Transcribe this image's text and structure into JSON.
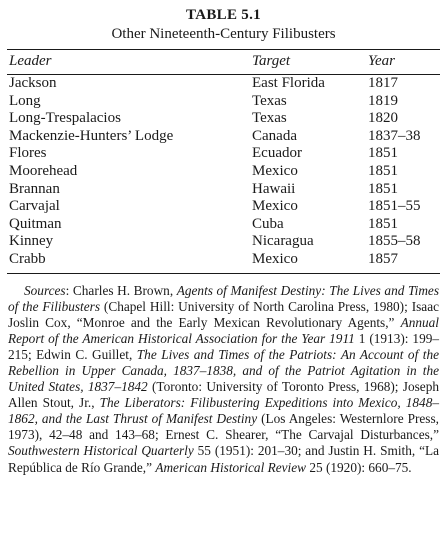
{
  "table": {
    "number": "TABLE 5.1",
    "caption": "Other Nineteenth-Century Filibusters",
    "headers": {
      "leader": "Leader",
      "target": "Target",
      "year": "Year"
    },
    "rows": [
      {
        "leader": "Jackson",
        "target": "East Florida",
        "year": "1817"
      },
      {
        "leader": "Long",
        "target": "Texas",
        "year": "1819"
      },
      {
        "leader": "Long-Trespalacios",
        "target": "Texas",
        "year": "1820"
      },
      {
        "leader": "Mackenzie-Hunters’ Lodge",
        "target": "Canada",
        "year": "1837–38"
      },
      {
        "leader": "Flores",
        "target": "Ecuador",
        "year": "1851"
      },
      {
        "leader": "Moorehead",
        "target": "Mexico",
        "year": "1851"
      },
      {
        "leader": "Brannan",
        "target": "Hawaii",
        "year": "1851"
      },
      {
        "leader": "Carvajal",
        "target": "Mexico",
        "year": "1851–55"
      },
      {
        "leader": "Quitman",
        "target": "Cuba",
        "year": "1851"
      },
      {
        "leader": "Kinney",
        "target": "Nicaragua",
        "year": "1855–58"
      },
      {
        "leader": "Crabb",
        "target": "Mexico",
        "year": "1857"
      }
    ]
  },
  "sources": {
    "label": "Sources",
    "segments": [
      {
        "italic": false,
        "text": ": Charles H. Brown, "
      },
      {
        "italic": true,
        "text": "Agents of Manifest Destiny: The Lives and Times of the Filibusters"
      },
      {
        "italic": false,
        "text": " (Chapel Hill: University of North Carolina Press, 1980); Isaac Joslin Cox, “Monroe and the Early Mexican Revolutionary Agents,” "
      },
      {
        "italic": true,
        "text": "Annual Report of the American Historical Association for the Year 1911"
      },
      {
        "italic": false,
        "text": " 1 (1913): 199–215; Edwin C. Guillet, "
      },
      {
        "italic": true,
        "text": "The Lives and Times of the Patriots: An Account of the Rebellion in Upper Canada, 1837–1838, and of the Patriot Agitation in the United States, 1837–1842"
      },
      {
        "italic": false,
        "text": " (Toronto: University of Toronto Press, 1968); Joseph Allen Stout, Jr., "
      },
      {
        "italic": true,
        "text": "The Liberators: Filibustering Expeditions into Mexico, 1848–1862, and the Last Thrust of Manifest Destiny"
      },
      {
        "italic": false,
        "text": " (Los Angeles: Westernlore Press, 1973), 42–48 and 143–68; Ernest C. Shearer, “The Carvajal Disturbances,” "
      },
      {
        "italic": true,
        "text": "Southwestern Historical Quarterly"
      },
      {
        "italic": false,
        "text": " 55 (1951): 201–30; and Justin H. Smith, “La República de Río Grande,” "
      },
      {
        "italic": true,
        "text": "American Historical Review"
      },
      {
        "italic": false,
        "text": " 25 (1920): 660–75."
      }
    ]
  }
}
